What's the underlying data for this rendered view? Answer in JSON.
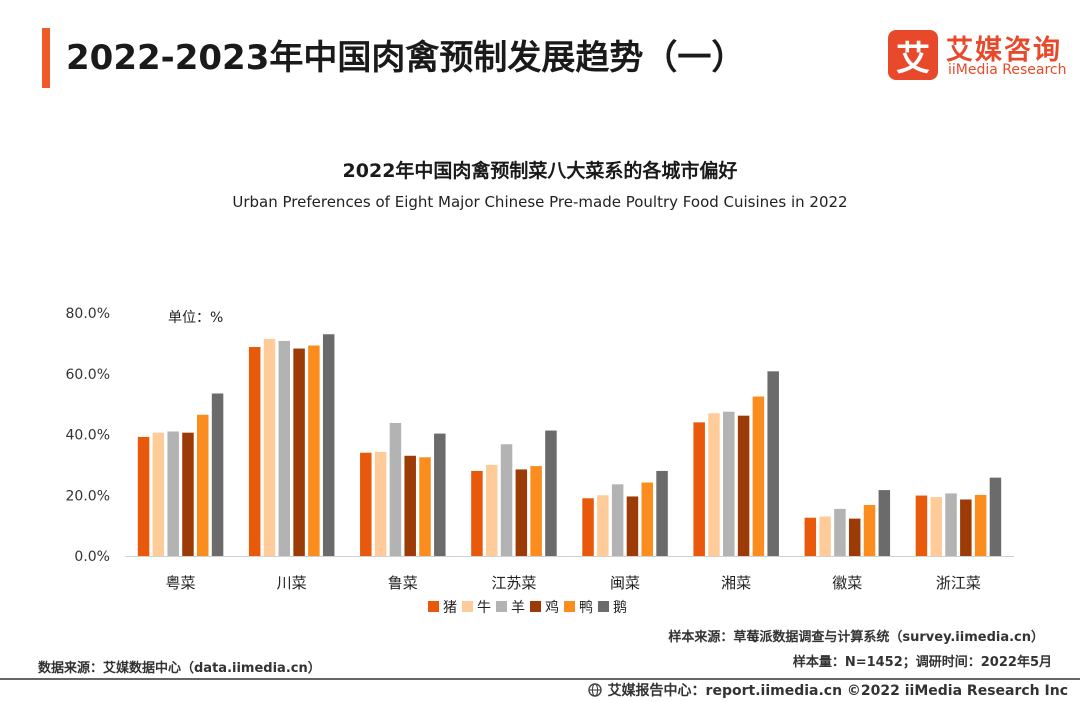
{
  "page": {
    "title": "2022-2023年中国肉禽预制发展趋势（一）",
    "accent": "#f05a28"
  },
  "logo": {
    "mark": "艾",
    "name_cn": "艾媒咨询",
    "name_en": "iiMedia Research",
    "color": "#e8492b"
  },
  "unit_label": "单位：%",
  "notes": {
    "sample_source": "样本来源：草莓派数据调查与计算系统（survey.iimedia.cn）",
    "sample_size": "样本量：N=1452；调研时间：2022年5月",
    "data_source": "数据来源：艾媒数据中心（data.iimedia.cn）",
    "footer": "艾媒报告中心：report.iimedia.cn  ©2022  iiMedia Research  Inc"
  },
  "chart_data": {
    "type": "bar",
    "title": "2022年中国肉禽预制菜八大菜系的各城市偏好",
    "subtitle": "Urban Preferences of Eight Major Chinese Pre-made Poultry Food Cuisines in 2022",
    "categories": [
      "粤菜",
      "川菜",
      "鲁菜",
      "江苏菜",
      "闽菜",
      "湘菜",
      "徽菜",
      "浙江菜"
    ],
    "series": [
      {
        "name": "猪",
        "color": "#e8590c",
        "values": [
          39.2,
          68.8,
          34.0,
          28.0,
          19.0,
          44.0,
          12.6,
          19.9
        ]
      },
      {
        "name": "牛",
        "color": "#ffcc99",
        "values": [
          40.6,
          71.5,
          34.3,
          30.0,
          20.0,
          47.0,
          13.0,
          19.4
        ]
      },
      {
        "name": "羊",
        "color": "#b3b3b3",
        "values": [
          41.0,
          70.8,
          43.8,
          36.8,
          23.6,
          47.5,
          15.5,
          20.6
        ]
      },
      {
        "name": "鸡",
        "color": "#9c3b05",
        "values": [
          40.6,
          68.3,
          33.0,
          28.5,
          19.6,
          46.2,
          12.3,
          18.6
        ]
      },
      {
        "name": "鸭",
        "color": "#fb8c1e",
        "values": [
          46.5,
          69.3,
          32.5,
          29.6,
          24.2,
          52.5,
          16.8,
          20.1
        ]
      },
      {
        "name": "鹅",
        "color": "#6b6b6b",
        "values": [
          53.5,
          73.0,
          40.3,
          41.3,
          28.0,
          60.8,
          21.7,
          25.8
        ]
      }
    ],
    "yticks": [
      "0.0%",
      "20.0%",
      "40.0%",
      "60.0%",
      "80.0%"
    ],
    "ylim": [
      0,
      80
    ],
    "legend_position": "bottom-center",
    "grid": false
  }
}
